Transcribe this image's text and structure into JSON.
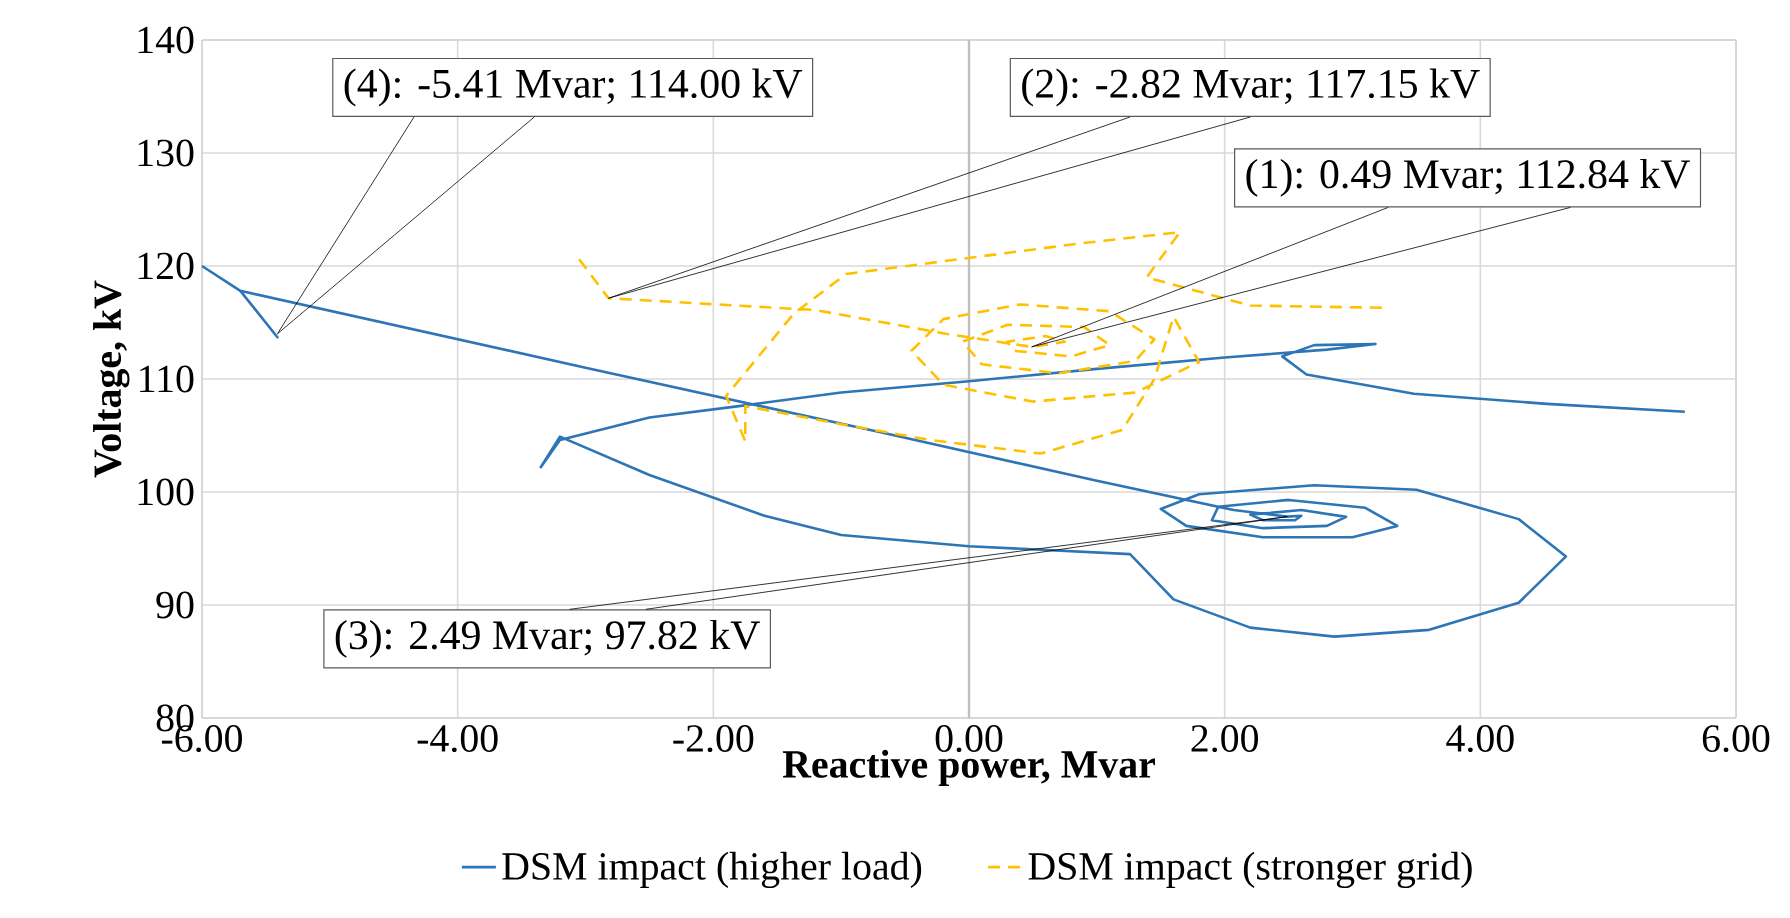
{
  "chart_data": {
    "type": "line",
    "xlabel": "Reactive power, Mvar",
    "ylabel": "Voltage, kV",
    "xlim": [
      -6,
      6
    ],
    "ylim": [
      80,
      140
    ],
    "xticks": [
      {
        "value": -6,
        "label": "-6.00"
      },
      {
        "value": -4,
        "label": "-4.00"
      },
      {
        "value": -2,
        "label": "-2.00"
      },
      {
        "value": 0,
        "label": "0.00"
      },
      {
        "value": 2,
        "label": "2.00"
      },
      {
        "value": 4,
        "label": "4.00"
      },
      {
        "value": 6,
        "label": "6.00"
      }
    ],
    "yticks": [
      80,
      90,
      100,
      110,
      120,
      130,
      140
    ],
    "grid": true,
    "legend": "bottom",
    "marker": "none",
    "ref_lines": [
      {
        "axis": "x",
        "value": 0,
        "color": "#bfbfbf"
      }
    ],
    "series": [
      {
        "name": "DSM impact (higher load)",
        "color": "#2e75b6",
        "line_style": "solid",
        "x": [
          -6.0,
          -5.7,
          -5.41,
          -5.7,
          -3.0,
          -0.7,
          1.0,
          2.07,
          2.49,
          2.6,
          2.55,
          2.3,
          2.2,
          2.6,
          2.95,
          2.8,
          2.3,
          1.9,
          1.95,
          2.5,
          3.1,
          3.35,
          3.0,
          2.3,
          1.7,
          1.5,
          1.8,
          2.7,
          3.5,
          4.3,
          4.67,
          4.3,
          3.6,
          2.86,
          2.2,
          1.6,
          1.26,
          0.0,
          -1.0,
          -1.6,
          -2.5,
          -3.2,
          -3.35,
          -3.2,
          -2.5,
          -1.8,
          -1.0,
          0.0,
          1.0,
          2.0,
          2.8,
          3.18,
          2.7,
          2.45,
          2.64,
          3.48,
          4.52,
          5.6
        ],
        "values": [
          120,
          117.8,
          113.7,
          117.8,
          111.0,
          105.3,
          101.0,
          98.4,
          97.82,
          97.9,
          97.5,
          97.5,
          98.0,
          98.4,
          97.8,
          97.0,
          96.8,
          97.5,
          98.7,
          99.3,
          98.6,
          97.0,
          96.0,
          96.0,
          97.0,
          98.5,
          99.8,
          100.6,
          100.2,
          97.6,
          94.3,
          90.2,
          87.8,
          87.2,
          88.0,
          90.5,
          94.5,
          95.2,
          96.2,
          97.9,
          101.5,
          104.9,
          102.2,
          104.6,
          106.6,
          107.6,
          108.8,
          109.8,
          110.9,
          111.9,
          112.6,
          113.1,
          113.0,
          112.0,
          110.4,
          108.7,
          107.8,
          107.1
        ]
      },
      {
        "name": "DSM impact (stronger grid)",
        "color": "#ffc000",
        "line_style": "dashed",
        "x": [
          -3.05,
          -2.82,
          -1.2,
          -0.18,
          0.49,
          0.75,
          0.6,
          0.3,
          0.35,
          0.8,
          1.1,
          0.9,
          0.3,
          -0.05,
          0.1,
          0.7,
          1.3,
          1.45,
          1.1,
          0.4,
          -0.2,
          -0.45,
          -0.2,
          0.5,
          1.3,
          1.8,
          1.6,
          1.45,
          1.2,
          0.56,
          -0.3,
          -1.0,
          -1.75,
          -1.75,
          -1.9,
          -1.37,
          -0.96,
          0.87,
          1.65,
          1.39,
          2.2,
          3.26
        ],
        "values": [
          120.6,
          117.15,
          116.1,
          114.0,
          112.84,
          113.3,
          113.8,
          113.3,
          112.5,
          112.0,
          113.0,
          114.6,
          114.8,
          113.3,
          111.3,
          110.5,
          111.6,
          113.5,
          116.0,
          116.6,
          115.3,
          112.5,
          109.5,
          108.0,
          108.8,
          111.5,
          115.5,
          110.0,
          105.5,
          103.4,
          104.6,
          106.0,
          107.6,
          104.5,
          108.5,
          115.8,
          119.3,
          122.0,
          123.0,
          119.0,
          116.5,
          116.3
        ]
      }
    ],
    "annotations": [
      {
        "text": "(4): -5.41 Mvar; 114.00 kV",
        "x": -5.41,
        "y": 114.0
      },
      {
        "text": "(2): -2.82 Mvar; 117.15 kV",
        "x": -2.82,
        "y": 117.15
      },
      {
        "text": "(1): 0.49 Mvar; 112.84 kV",
        "x": 0.49,
        "y": 112.84
      },
      {
        "text": "(3): 2.49 Mvar; 97.82 kV",
        "x": 2.49,
        "y": 97.82
      }
    ]
  }
}
